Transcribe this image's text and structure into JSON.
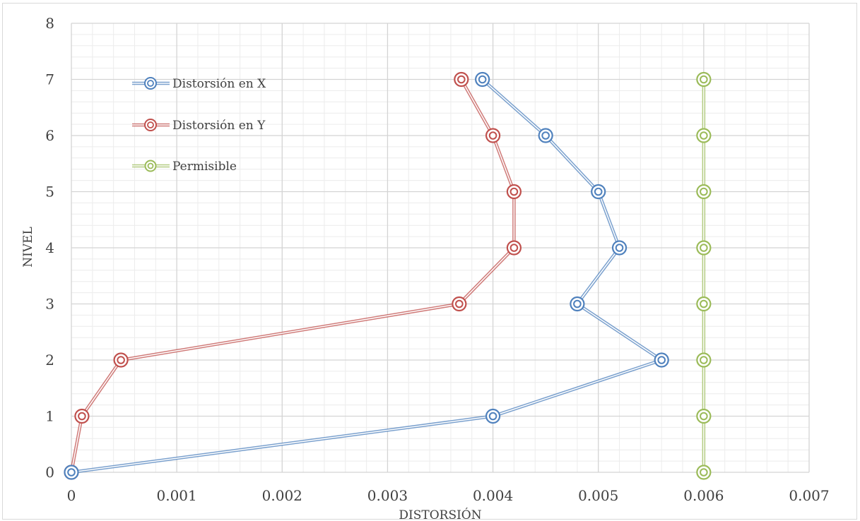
{
  "chart_data": {
    "type": "scatter",
    "title": "",
    "xlabel": "DISTORSIÓN",
    "ylabel": "NIVEL",
    "xlim": [
      0,
      0.007
    ],
    "ylim": [
      0,
      8
    ],
    "xticks": [
      "0",
      "0.001",
      "0.002",
      "0.003",
      "0.004",
      "0.005",
      "0.006",
      "0.007"
    ],
    "yticks": [
      "0",
      "1",
      "2",
      "3",
      "4",
      "5",
      "6",
      "7",
      "8"
    ],
    "grid": true,
    "legend_position": "top-left",
    "series": [
      {
        "name": "Distorsión en X",
        "color": "#4f81bd",
        "points": [
          [
            0,
            0
          ],
          [
            0.004,
            1
          ],
          [
            0.0056,
            2
          ],
          [
            0.0048,
            3
          ],
          [
            0.0052,
            4
          ],
          [
            0.005,
            5
          ],
          [
            0.0045,
            6
          ],
          [
            0.0039,
            7
          ]
        ]
      },
      {
        "name": "Distorsión en Y",
        "color": "#c0504d",
        "points": [
          [
            0,
            0
          ],
          [
            0.0001,
            1
          ],
          [
            0.00047,
            2
          ],
          [
            0.00368,
            3
          ],
          [
            0.0042,
            4
          ],
          [
            0.0042,
            5
          ],
          [
            0.004,
            6
          ],
          [
            0.0037,
            7
          ]
        ]
      },
      {
        "name": "Permisible",
        "color": "#9bbb59",
        "points": [
          [
            0.006,
            0
          ],
          [
            0.006,
            1
          ],
          [
            0.006,
            2
          ],
          [
            0.006,
            3
          ],
          [
            0.006,
            4
          ],
          [
            0.006,
            5
          ],
          [
            0.006,
            6
          ],
          [
            0.006,
            7
          ]
        ]
      }
    ]
  }
}
